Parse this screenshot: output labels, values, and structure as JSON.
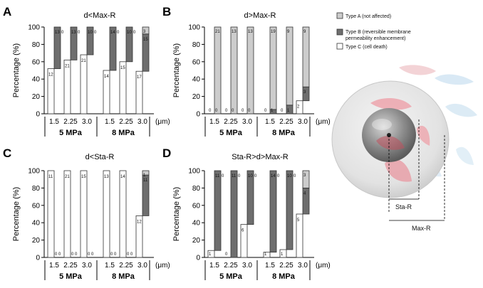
{
  "legend": {
    "type_a": "Type A (not affected)",
    "type_b_line1": "Type B (reversible membrane",
    "type_b_line2": "permeability enhancement)",
    "type_c": "Type C (cell death)",
    "colors": {
      "type_a": "#cccccc",
      "type_b": "#6e6e6e",
      "type_c": "#ffffff"
    }
  },
  "schematic": {
    "sta_r_label": "Sta-R",
    "max_r_label": "Max-R"
  },
  "x_unit": "(μm)",
  "chart_data": [
    {
      "panel": "A",
      "type": "bar",
      "stacked": true,
      "title": "d<Max-R",
      "ylabel": "Percentage (%)",
      "ylim": [
        0,
        100
      ],
      "yticks": [
        0,
        20,
        40,
        60,
        80,
        100
      ],
      "groups": [
        "5 MPa",
        "8 MPa"
      ],
      "categories": [
        "1.5",
        "2.25",
        "3.0",
        "1.5",
        "2.25",
        "3.0"
      ],
      "series": [
        {
          "name": "Type C (cell death)",
          "values": [
            52,
            62,
            68,
            50,
            60,
            49
          ]
        },
        {
          "name": "Type B (reversible membrane permeability enhancement)",
          "values": [
            48,
            38,
            32,
            50,
            40,
            43
          ]
        },
        {
          "name": "Type A (not affected)",
          "values": [
            0,
            0,
            0,
            0,
            0,
            8
          ]
        }
      ],
      "count_labels": [
        [
          "12",
          "13",
          "0"
        ],
        [
          "21",
          "13",
          "0"
        ],
        [
          "21",
          "10",
          "0"
        ],
        [
          "14",
          "14",
          "0"
        ],
        [
          "15",
          "10",
          "0"
        ],
        [
          "17",
          "15",
          "3"
        ]
      ]
    },
    {
      "panel": "B",
      "type": "bar",
      "stacked": true,
      "title": "d>Max-R",
      "ylabel": "Percentage (%)",
      "ylim": [
        0,
        100
      ],
      "yticks": [
        0,
        20,
        40,
        60,
        80,
        100
      ],
      "groups": [
        "5 MPa",
        "8 MPa"
      ],
      "categories": [
        "1.5",
        "2.25",
        "3.0",
        "1.5",
        "2.25",
        "3.0"
      ],
      "series": [
        {
          "name": "Type C (cell death)",
          "values": [
            0,
            0,
            0,
            0,
            0,
            15
          ]
        },
        {
          "name": "Type B (reversible membrane permeability enhancement)",
          "values": [
            0,
            0,
            0,
            5,
            10,
            16
          ]
        },
        {
          "name": "Type A (not affected)",
          "values": [
            100,
            100,
            100,
            95,
            90,
            69
          ]
        }
      ],
      "count_labels": [
        [
          "0",
          "0",
          "21"
        ],
        [
          "0",
          "0",
          "13"
        ],
        [
          "0",
          "0",
          "13"
        ],
        [
          "0",
          "1",
          "19"
        ],
        [
          "0",
          "1",
          "9"
        ],
        [
          "2",
          "3",
          "9"
        ]
      ]
    },
    {
      "panel": "C",
      "type": "bar",
      "stacked": true,
      "title": "d<Sta-R",
      "ylabel": "Percentage (%)",
      "ylim": [
        0,
        100
      ],
      "yticks": [
        0,
        20,
        40,
        60,
        80,
        100
      ],
      "groups": [
        "5 MPa",
        "8 MPa"
      ],
      "categories": [
        "1.5",
        "2.25",
        "3.0",
        "1.5",
        "2.25",
        "3.0"
      ],
      "series": [
        {
          "name": "Type C (cell death)",
          "values": [
            100,
            100,
            100,
            100,
            100,
            48
          ]
        },
        {
          "name": "Type B (reversible membrane permeability enhancement)",
          "values": [
            0,
            0,
            0,
            0,
            0,
            47
          ]
        },
        {
          "name": "Type A (not affected)",
          "values": [
            0,
            0,
            0,
            0,
            0,
            5
          ]
        }
      ],
      "count_labels": [
        [
          "11",
          "0",
          "0"
        ],
        [
          "21",
          "0",
          "0"
        ],
        [
          "15",
          "0",
          "0"
        ],
        [
          "13",
          "0",
          "0"
        ],
        [
          "14",
          "0",
          "0"
        ],
        [
          "12",
          "11",
          "1"
        ]
      ]
    },
    {
      "panel": "D",
      "type": "bar",
      "stacked": true,
      "title": "Sta-R>d>Max-R",
      "ylabel": "Percentage (%)",
      "ylim": [
        0,
        100
      ],
      "yticks": [
        0,
        20,
        40,
        60,
        80,
        100
      ],
      "groups": [
        "5 MPa",
        "8 MPa"
      ],
      "categories": [
        "1.5",
        "2.25",
        "3.0",
        "1.5",
        "2.25",
        "3.0"
      ],
      "series": [
        {
          "name": "Type C (cell death)",
          "values": [
            8,
            0,
            38,
            6,
            9,
            50
          ]
        },
        {
          "name": "Type B (reversible membrane permeability enhancement)",
          "values": [
            92,
            100,
            62,
            94,
            91,
            30
          ]
        },
        {
          "name": "Type A (not affected)",
          "values": [
            0,
            0,
            0,
            0,
            0,
            20
          ]
        }
      ],
      "count_labels": [
        [
          "1",
          "11",
          "0"
        ],
        [
          "0",
          "11",
          "0"
        ],
        [
          "6",
          "10",
          "0"
        ],
        [
          "1",
          "14",
          "0"
        ],
        [
          "1",
          "10",
          "0"
        ],
        [
          "5",
          "4",
          "3"
        ]
      ]
    }
  ]
}
